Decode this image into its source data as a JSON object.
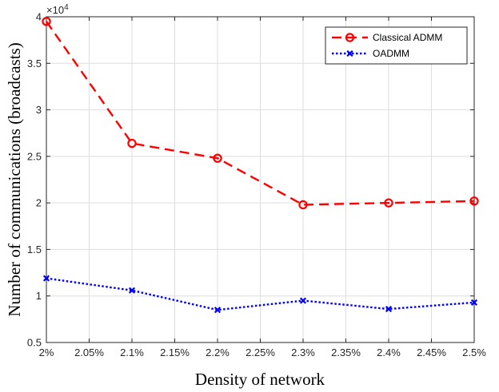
{
  "chart_data": {
    "type": "line",
    "xlabel": "Density of network",
    "ylabel": "Number of communications (broadcasts)",
    "y_multiplier": "×10",
    "y_multiplier_exp": "4",
    "x": [
      2.0,
      2.1,
      2.2,
      2.3,
      2.4,
      2.5
    ],
    "xlim": [
      2.0,
      2.5
    ],
    "ylim": [
      0.5,
      4
    ],
    "y_scale": 10000,
    "xticks": [
      2.0,
      2.05,
      2.1,
      2.15,
      2.2,
      2.25,
      2.3,
      2.35,
      2.4,
      2.45,
      2.5
    ],
    "xtick_labels": [
      "2%",
      "2.05%",
      "2.1%",
      "2.15%",
      "2.2%",
      "2.25%",
      "2.3%",
      "2.35%",
      "2.4%",
      "2.45%",
      "2.5%"
    ],
    "yticks": [
      0.5,
      1,
      1.5,
      2,
      2.5,
      3,
      3.5,
      4
    ],
    "ytick_labels": [
      "0.5",
      "1",
      "1.5",
      "2",
      "2.5",
      "3",
      "3.5",
      "4"
    ],
    "grid": true,
    "legend_position": "top-right",
    "series": [
      {
        "name": "Classical ADMM",
        "values": [
          3.95,
          2.64,
          2.48,
          1.98,
          2.0,
          2.02
        ],
        "color": "#ff0000",
        "line_style": "dashed",
        "marker": "circle"
      },
      {
        "name": "OADMM",
        "values": [
          1.19,
          1.06,
          0.85,
          0.95,
          0.86,
          0.93
        ],
        "color": "#0000ff",
        "line_style": "dotted",
        "marker": "x"
      }
    ]
  }
}
